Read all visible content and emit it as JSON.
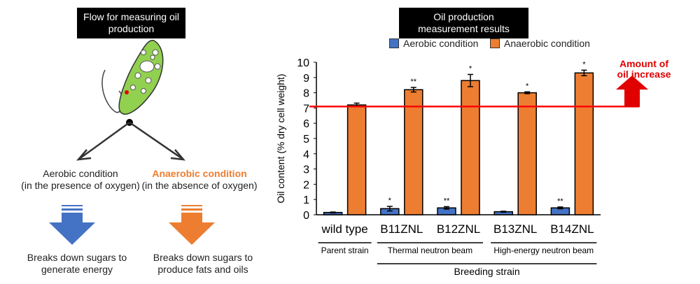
{
  "left_panel": {
    "title": "Flow for measuring oil production",
    "aerobic": {
      "line1": "Aerobic condition",
      "line2": "(in the presence of oxygen)",
      "result_line1": "Breaks down sugars to",
      "result_line2": "generate energy"
    },
    "anaerobic": {
      "line1": "Anaerobic condition",
      "line2": "(in the absence of oxygen)",
      "result_line1": "Breaks down sugars to",
      "result_line2": "produce fats and oils"
    },
    "colors": {
      "aerobic": "#4472c4",
      "anaerobic": "#ed7d31",
      "cell_body": "#92d050"
    }
  },
  "right_panel": {
    "title": "Oil production measurement results",
    "legend": {
      "aerobic": "Aerobic condition",
      "anaerobic": "Anaerobic condition"
    },
    "callout": "Amount of oil increase",
    "groups": {
      "parent": "Parent strain",
      "thermal": "Thermal neutron beam",
      "high_energy": "High-energy neutron beam",
      "breeding": "Breeding strain"
    }
  },
  "chart_data": {
    "type": "bar",
    "ylabel": "Oil content (% dry cell weight)",
    "ylim": [
      0,
      10
    ],
    "yticks": [
      0,
      1,
      2,
      3,
      4,
      5,
      6,
      7,
      8,
      9,
      10
    ],
    "categories": [
      "wild type",
      "B11ZNL",
      "B12ZNL",
      "B13ZNL",
      "B14ZNL"
    ],
    "series": [
      {
        "name": "Aerobic condition",
        "color": "#4472c4",
        "values": [
          0.15,
          0.4,
          0.45,
          0.2,
          0.45
        ],
        "errors": [
          0.03,
          0.15,
          0.08,
          0.03,
          0.06
        ],
        "marks": [
          "",
          "*",
          "**",
          "",
          "**"
        ]
      },
      {
        "name": "Anaerobic condition",
        "color": "#ed7d31",
        "values": [
          7.2,
          8.2,
          8.8,
          8.0,
          9.3
        ],
        "errors": [
          0.12,
          0.15,
          0.4,
          0.06,
          0.18
        ],
        "marks": [
          "",
          "**",
          "*",
          "*",
          "*"
        ]
      }
    ],
    "reference_line": {
      "value": 7.1,
      "color": "#ff0000"
    }
  }
}
